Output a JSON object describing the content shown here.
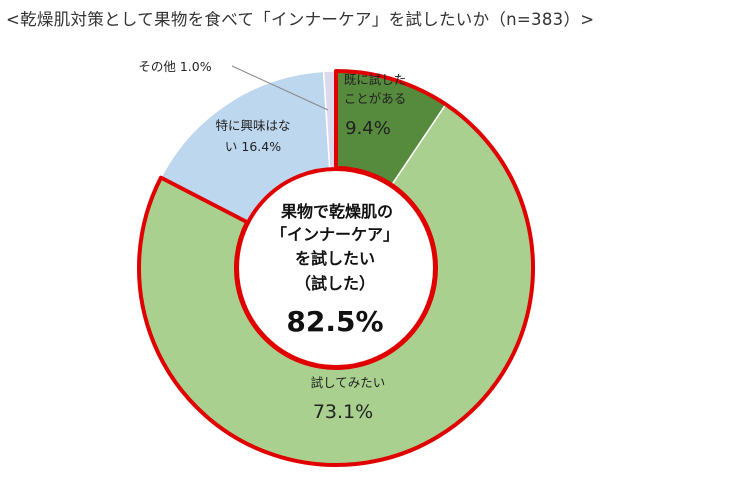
{
  "title": "<乾燥肌対策として果物を食べて「インナーケア」を試したいか（n=383）>",
  "colors": {
    "tried": "#568a3c",
    "want": "#a9d08e",
    "no_interest": "#bdd7ee",
    "other": "#dcd8ee",
    "highlight": "#e00000"
  },
  "chart_data": {
    "type": "pie",
    "style": "donut",
    "title": "<乾燥肌対策として果物を食べて「インナーケア」を試したいか（n=383）>",
    "slices": [
      {
        "label_lines": [
          "既に試した",
          "ことがある"
        ],
        "value": 9.4,
        "value_text": "9.4%"
      },
      {
        "label_lines": [
          "試してみたい"
        ],
        "value": 73.1,
        "value_text": "73.1%"
      },
      {
        "label_lines": [
          "特に興味はな",
          "い 16.4%"
        ],
        "value": 16.4
      },
      {
        "label_lines": [
          "その他 1.0%"
        ],
        "value": 1.0
      }
    ],
    "center": {
      "lines": [
        "果物で乾燥肌の",
        "「インナーケア」",
        "を試したい",
        "（試した）"
      ],
      "value_text": "82.5%"
    },
    "highlighted_total": 82.5
  }
}
